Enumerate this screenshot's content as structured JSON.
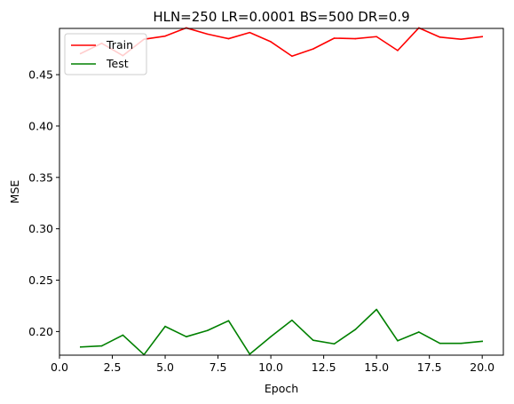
{
  "chart_data": {
    "type": "line",
    "title": "HLN=250 LR=0.0001 BS=500 DR=0.9",
    "xlabel": "Epoch",
    "ylabel": "MSE",
    "xlim": [
      0.0,
      21.0
    ],
    "ylim": [
      0.177,
      0.495
    ],
    "xticks": [
      0.0,
      2.5,
      5.0,
      7.5,
      10.0,
      12.5,
      15.0,
      17.5,
      20.0
    ],
    "xtick_labels": [
      "0.0",
      "2.5",
      "5.0",
      "7.5",
      "10.0",
      "12.5",
      "15.0",
      "17.5",
      "20.0"
    ],
    "yticks": [
      0.2,
      0.25,
      0.3,
      0.35,
      0.4,
      0.45
    ],
    "ytick_labels": [
      "0.20",
      "0.25",
      "0.30",
      "0.35",
      "0.40",
      "0.45"
    ],
    "grid": false,
    "legend_position": "top-left",
    "x": [
      1,
      2,
      3,
      4,
      5,
      6,
      7,
      8,
      9,
      10,
      11,
      12,
      13,
      14,
      15,
      16,
      17,
      18,
      19,
      20
    ],
    "series": [
      {
        "name": "Train",
        "color": "#ff0000",
        "values": [
          0.4705,
          0.4805,
          0.4685,
          0.4845,
          0.4875,
          0.4955,
          0.4895,
          0.485,
          0.491,
          0.482,
          0.468,
          0.475,
          0.4855,
          0.485,
          0.487,
          0.4735,
          0.4955,
          0.4865,
          0.4845,
          0.487
        ]
      },
      {
        "name": "Test",
        "color": "#008000",
        "values": [
          0.185,
          0.186,
          0.1965,
          0.1775,
          0.205,
          0.195,
          0.201,
          0.2105,
          0.178,
          0.195,
          0.211,
          0.1915,
          0.188,
          0.202,
          0.2215,
          0.191,
          0.1995,
          0.1885,
          0.1885,
          0.1905
        ]
      }
    ]
  }
}
